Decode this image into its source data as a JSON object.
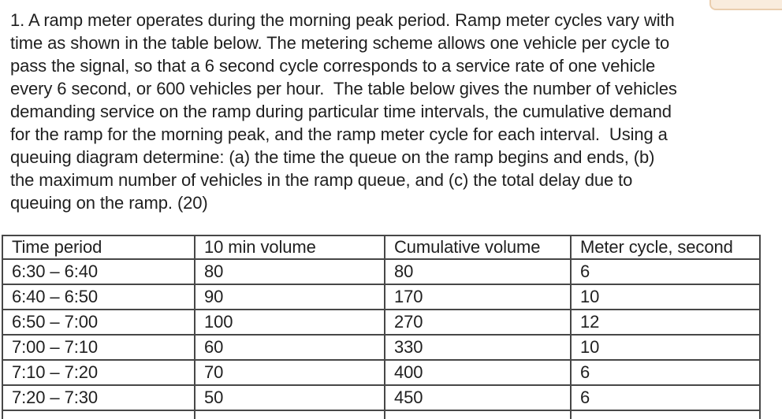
{
  "page": {
    "background": "#ffffff",
    "text_color": "#1f1f1f",
    "table_border_color": "#474747",
    "peach_fragment_fill": "#f9ecdd",
    "peach_fragment_border": "#eaceae"
  },
  "problem": {
    "lines": [
      "1. A ramp meter operates during the morning peak period. Ramp meter cycles vary with",
      "time as shown in the table below. The metering scheme allows one vehicle per cycle to",
      "pass the signal, so that a 6 second cycle corresponds to a service rate of one vehicle",
      "every 6 second, or 600 vehicles per hour.  The table below gives the number of vehicles",
      "demanding service on the ramp during particular time intervals, the cumulative demand",
      "for the ramp for the morning peak, and the ramp meter cycle for each interval.  Using a",
      "queuing diagram determine: (a) the time the queue on the ramp begins and ends, (b)",
      "the maximum number of vehicles in the ramp queue, and (c) the total delay due to",
      "queuing on the ramp. (20)"
    ]
  },
  "table": {
    "headers": [
      "Time period",
      "10 min volume",
      "Cumulative volume",
      "Meter cycle, second"
    ],
    "rows": [
      [
        "6:30 – 6:40",
        "80",
        "80",
        "6"
      ],
      [
        "6:40 – 6:50",
        "90",
        "170",
        "10"
      ],
      [
        "6:50 – 7:00",
        "100",
        "270",
        "12"
      ],
      [
        "7:00 – 7:10",
        "60",
        "330",
        "10"
      ],
      [
        "7:10 – 7:20",
        "70",
        "400",
        "6"
      ],
      [
        "7:20 – 7:30",
        "50",
        "450",
        "6"
      ]
    ]
  }
}
